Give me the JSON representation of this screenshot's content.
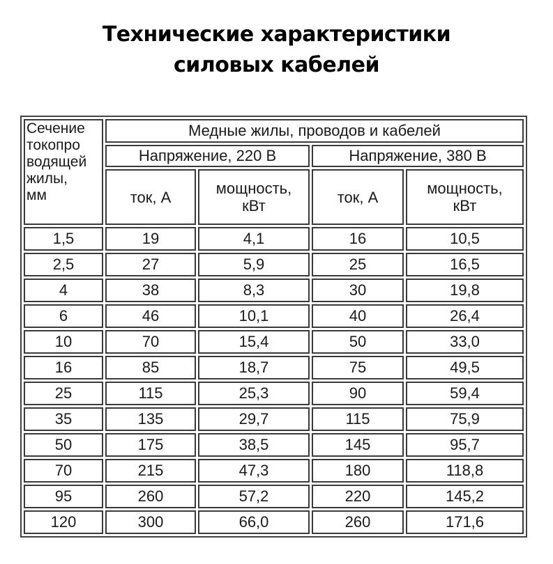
{
  "title": {
    "line1": "Технические характеристики",
    "line2": "силовых кабелей"
  },
  "table": {
    "section_header": [
      "Сечение",
      "токопро",
      "водящей",
      "жилы,",
      "мм"
    ],
    "group_header": "Медные жилы, проводов и кабелей",
    "voltage_headers": [
      "Напряжение, 220 В",
      "Напряжение, 380 В"
    ],
    "sub_headers": [
      {
        "current": "ток, А",
        "power_line1": "мощность,",
        "power_line2": "кВт"
      },
      {
        "current": "ток, А",
        "power_line1": "мощность,",
        "power_line2": "кВт"
      }
    ],
    "rows": [
      [
        "1,5",
        "19",
        "4,1",
        "16",
        "10,5"
      ],
      [
        "2,5",
        "27",
        "5,9",
        "25",
        "16,5"
      ],
      [
        "4",
        "38",
        "8,3",
        "30",
        "19,8"
      ],
      [
        "6",
        "46",
        "10,1",
        "40",
        "26,4"
      ],
      [
        "10",
        "70",
        "15,4",
        "50",
        "33,0"
      ],
      [
        "16",
        "85",
        "18,7",
        "75",
        "49,5"
      ],
      [
        "25",
        "115",
        "25,3",
        "90",
        "59,4"
      ],
      [
        "35",
        "135",
        "29,7",
        "115",
        "75,9"
      ],
      [
        "50",
        "175",
        "38,5",
        "145",
        "95,7"
      ],
      [
        "70",
        "215",
        "47,3",
        "180",
        "118,8"
      ],
      [
        "95",
        "260",
        "57,2",
        "220",
        "145,2"
      ],
      [
        "120",
        "300",
        "66,0",
        "260",
        "171,6"
      ]
    ]
  }
}
